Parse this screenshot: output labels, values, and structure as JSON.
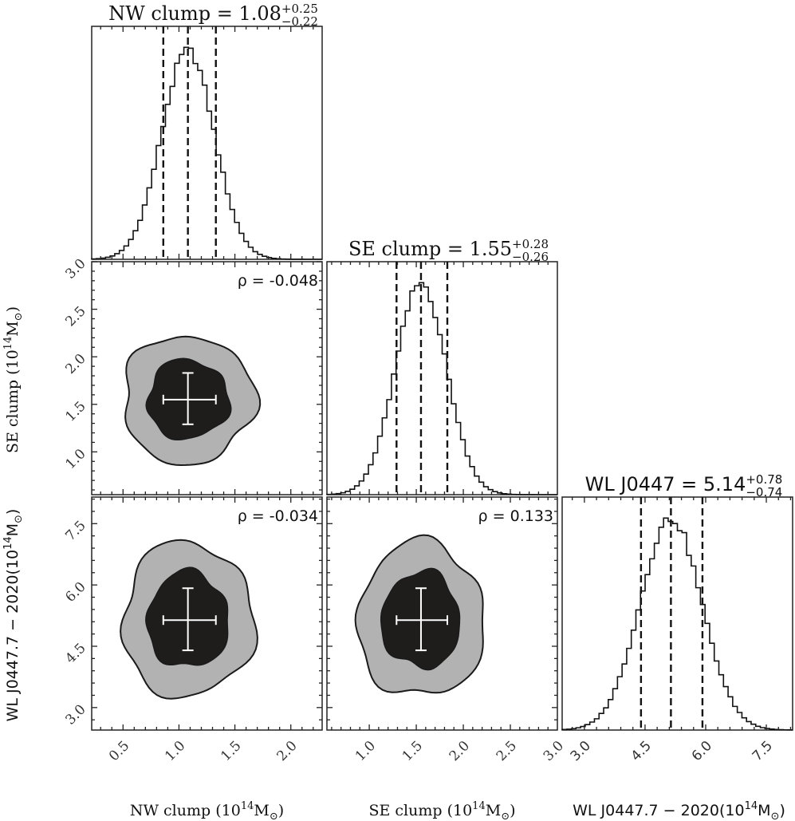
{
  "chart_data": {
    "type": "corner",
    "colors": {
      "outer_contour": "#b2b2b2",
      "inner_contour": "#1f1c1c",
      "line": "#111111",
      "errorbar": "#ffffff"
    },
    "parameters": [
      {
        "key": "nw",
        "title_name": "NW clump",
        "median": "1.08",
        "err_plus": "+0.25",
        "err_minus": "−0.22",
        "axis_label": "NW clump (10",
        "axis_label_exp": "14",
        "axis_label_unit": "M",
        "axis_label_sun": "⊙",
        "axis_label_close": ")",
        "range": [
          0.22,
          2.28
        ],
        "ticks": [
          0.5,
          1.0,
          1.5,
          2.0
        ],
        "tick_labels": [
          "0.5",
          "1.0",
          "1.5",
          "2.0"
        ],
        "mean": 1.08,
        "sigma": 0.235,
        "quantiles": [
          0.86,
          1.08,
          1.33
        ]
      },
      {
        "key": "se",
        "title_name": "SE clump",
        "median": "1.55",
        "err_plus": "+0.28",
        "err_minus": "−0.26",
        "axis_label": "SE clump (10",
        "axis_label_exp": "14",
        "axis_label_unit": "M",
        "axis_label_sun": "⊙",
        "axis_label_close": ")",
        "range": [
          0.55,
          3.0
        ],
        "ticks": [
          1.0,
          1.5,
          2.0,
          2.5,
          3.0
        ],
        "tick_labels": [
          "1.0",
          "1.5",
          "2.0",
          "2.5",
          "3.0"
        ],
        "mean": 1.55,
        "sigma": 0.27,
        "quantiles": [
          1.29,
          1.55,
          1.83
        ]
      },
      {
        "key": "wl",
        "title_name": "WL J0447",
        "median": "5.14",
        "err_plus": "+0.78",
        "err_minus": "−0.74",
        "axis_label": "WL J0447.7 − 2020(10",
        "axis_label_exp": "14",
        "axis_label_unit": "M",
        "axis_label_sun": "⊙",
        "axis_label_close": ")",
        "range": [
          2.45,
          8.15
        ],
        "ticks": [
          3.0,
          4.5,
          6.0,
          7.5
        ],
        "tick_labels": [
          "3.0",
          "4.5",
          "6.0",
          "7.5"
        ],
        "mean": 5.14,
        "sigma": 0.76,
        "quantiles": [
          4.4,
          5.14,
          5.92
        ]
      }
    ],
    "pairs": [
      {
        "row": 1,
        "col": 0,
        "rho_label": "ρ = -0.048",
        "center": [
          1.08,
          1.55
        ],
        "err_x": [
          0.22,
          0.25
        ],
        "err_y": [
          0.26,
          0.28
        ]
      },
      {
        "row": 2,
        "col": 0,
        "rho_label": "ρ = -0.034",
        "center": [
          1.08,
          5.14
        ],
        "err_x": [
          0.22,
          0.25
        ],
        "err_y": [
          0.74,
          0.78
        ]
      },
      {
        "row": 2,
        "col": 1,
        "rho_label": "ρ = 0.133",
        "center": [
          1.55,
          5.14
        ],
        "err_x": [
          0.26,
          0.28
        ],
        "err_y": [
          0.74,
          0.78
        ]
      }
    ],
    "contour_levels_sigma": [
      1,
      2
    ]
  }
}
